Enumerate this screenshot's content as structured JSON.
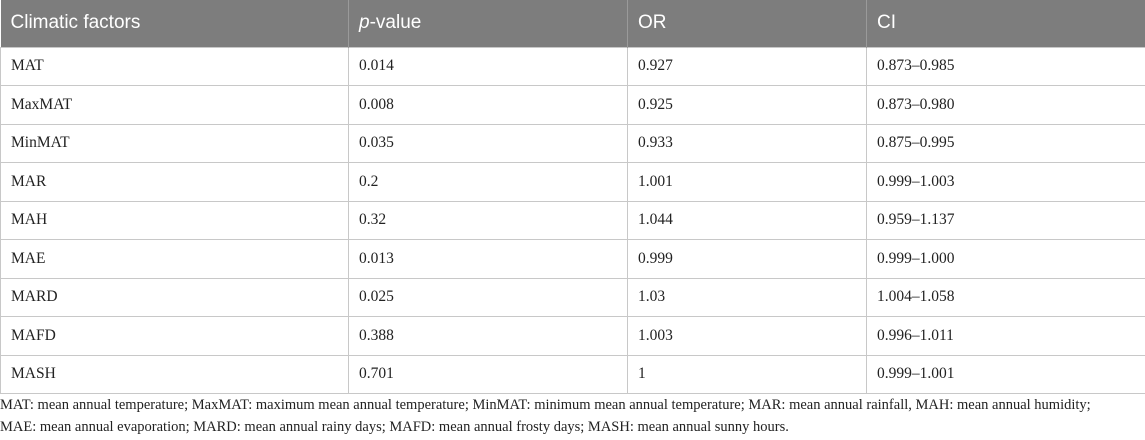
{
  "table": {
    "headers": {
      "col1": "Climatic factors",
      "col2_italic": "p",
      "col2_rest": "-value",
      "col3": "OR",
      "col4": "CI"
    },
    "rows": [
      {
        "factor": "MAT",
        "p": "0.014",
        "or": "0.927",
        "ci": "0.873–0.985"
      },
      {
        "factor": "MaxMAT",
        "p": "0.008",
        "or": "0.925",
        "ci": "0.873–0.980"
      },
      {
        "factor": "MinMAT",
        "p": "0.035",
        "or": "0.933",
        "ci": "0.875–0.995"
      },
      {
        "factor": "MAR",
        "p": "0.2",
        "or": "1.001",
        "ci": "0.999–1.003"
      },
      {
        "factor": "MAH",
        "p": "0.32",
        "or": "1.044",
        "ci": "0.959–1.137"
      },
      {
        "factor": "MAE",
        "p": "0.013",
        "or": "0.999",
        "ci": "0.999–1.000"
      },
      {
        "factor": "MARD",
        "p": "0.025",
        "or": "1.03",
        "ci": "1.004–1.058"
      },
      {
        "factor": "MAFD",
        "p": "0.388",
        "or": "1.003",
        "ci": "0.996–1.011"
      },
      {
        "factor": "MASH",
        "p": "0.701",
        "or": "1",
        "ci": "0.999–1.001"
      }
    ]
  },
  "footnote": {
    "line1": "MAT: mean annual temperature; MaxMAT: maximum mean annual temperature; MinMAT: minimum mean annual temperature; MAR: mean annual rainfall, MAH: mean annual humidity;",
    "line2": "MAE: mean annual evaporation; MARD: mean annual rainy days; MAFD: mean annual frosty days; MASH: mean annual sunny hours."
  },
  "colors": {
    "header_bg": "#7d7d7d",
    "header_text": "#ffffff",
    "border": "#c8c8c8"
  }
}
